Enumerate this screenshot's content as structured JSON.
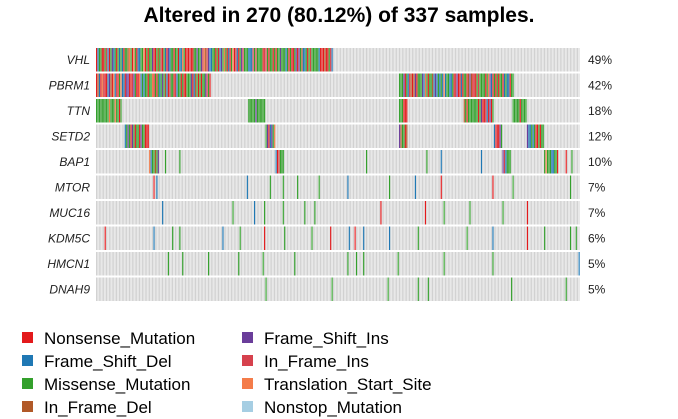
{
  "chart_data": {
    "type": "oncoplot",
    "title": "Altered in 270 (80.12%) of 337 samples.",
    "n_samples": 337,
    "genes": [
      "VHL",
      "PBRM1",
      "TTN",
      "SETD2",
      "BAP1",
      "MTOR",
      "MUC16",
      "KDM5C",
      "HMCN1",
      "DNAH9"
    ],
    "percent_labels": [
      "49%",
      "42%",
      "18%",
      "12%",
      "10%",
      "7%",
      "7%",
      "6%",
      "5%",
      "5%"
    ],
    "background_color": "#cccccc",
    "legend": [
      {
        "label": "Nonsense_Mutation",
        "color": "#e31a1c"
      },
      {
        "label": "Frame_Shift_Del",
        "color": "#1f78b4"
      },
      {
        "label": "Missense_Mutation",
        "color": "#33a02c"
      },
      {
        "label": "In_Frame_Del",
        "color": "#b15928"
      },
      {
        "label": "Frame_Shift_Ins",
        "color": "#6a3d9a"
      },
      {
        "label": "In_Frame_Ins",
        "color": "#d6414d"
      },
      {
        "label": "Translation_Start_Site",
        "color": "#f47c4a"
      },
      {
        "label": "Nonstop_Mutation",
        "color": "#a6cee3"
      }
    ],
    "mutation_segments": [
      {
        "gene": "VHL",
        "sample_range": [
          0,
          165
        ],
        "pattern": "mixed"
      },
      {
        "gene": "PBRM1",
        "sample_range": [
          0,
          80
        ],
        "pattern": "mixed"
      },
      {
        "gene": "PBRM1",
        "sample_range": [
          211,
          291
        ],
        "pattern": "mixed"
      },
      {
        "gene": "TTN",
        "sample_range": [
          0,
          18
        ],
        "pattern": "missense"
      },
      {
        "gene": "TTN",
        "sample_range": [
          106,
          118
        ],
        "pattern": "missense"
      },
      {
        "gene": "TTN",
        "sample_range": [
          211,
          217
        ],
        "pattern": "mixed"
      },
      {
        "gene": "TTN",
        "sample_range": [
          256,
          277
        ],
        "pattern": "mixed"
      },
      {
        "gene": "TTN",
        "sample_range": [
          290,
          300
        ],
        "pattern": "missense"
      },
      {
        "gene": "SETD2",
        "sample_range": [
          20,
          37
        ],
        "pattern": "mixed"
      },
      {
        "gene": "SETD2",
        "sample_range": [
          118,
          125
        ],
        "pattern": "mixed"
      },
      {
        "gene": "SETD2",
        "sample_range": [
          211,
          217
        ],
        "pattern": "mixed"
      },
      {
        "gene": "SETD2",
        "sample_range": [
          277,
          283
        ],
        "pattern": "mixed"
      },
      {
        "gene": "SETD2",
        "sample_range": [
          300,
          312
        ],
        "pattern": "mixed"
      },
      {
        "gene": "BAP1",
        "sample_range": [
          37,
          44
        ],
        "pattern": "mixed"
      },
      {
        "gene": "BAP1",
        "sample_range": [
          125,
          131
        ],
        "pattern": "mixed"
      },
      {
        "gene": "BAP1",
        "sample_range": [
          283,
          289
        ],
        "pattern": "mixed"
      },
      {
        "gene": "BAP1",
        "sample_range": [
          312,
          322
        ],
        "pattern": "mixed"
      }
    ]
  }
}
